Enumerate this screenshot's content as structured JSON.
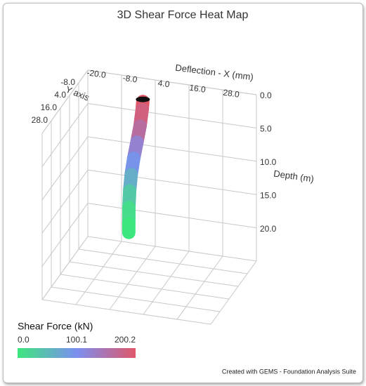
{
  "chart_data": {
    "type": "tube3d",
    "title": "3D Shear Force Heat Map",
    "xlabel": "Deflection - X (mm)",
    "ylabel": "Y axis",
    "zlabel": "Depth (m)",
    "xlim": [
      -20,
      40
    ],
    "ylim": [
      -20,
      40
    ],
    "zlim": [
      0,
      25
    ],
    "xticks": [
      {
        "value": -20,
        "label": "-20.0"
      },
      {
        "value": -8,
        "label": "-8.0"
      },
      {
        "value": 4,
        "label": "4.0"
      },
      {
        "value": 16,
        "label": "16.0"
      },
      {
        "value": 28,
        "label": "28.0"
      }
    ],
    "yticks": [
      {
        "value": -8,
        "label": "-8.0"
      },
      {
        "value": 4,
        "label": "4.0"
      },
      {
        "value": 16,
        "label": "16.0"
      },
      {
        "value": 28,
        "label": "28.0"
      }
    ],
    "zticks": [
      {
        "value": 0,
        "label": "0.0"
      },
      {
        "value": 5,
        "label": "5.0"
      },
      {
        "value": 10,
        "label": "10.0"
      },
      {
        "value": 15,
        "label": "15.0"
      },
      {
        "value": 20,
        "label": "20.0"
      }
    ],
    "grid": true,
    "series": [
      {
        "y": 0,
        "depth": [
          0,
          2.5,
          5,
          7.5,
          10,
          12.5,
          15,
          17.5,
          20
        ],
        "x": [
          5,
          4.5,
          3.5,
          2.3,
          1.2,
          0.5,
          0.1,
          0,
          0
        ],
        "shear": [
          200.2,
          185,
          160,
          125,
          95,
          65,
          35,
          12,
          0
        ]
      }
    ],
    "colorbar": {
      "title": "Shear Force (kN)",
      "clim": [
        0,
        200.2
      ],
      "ticks": [
        {
          "value": 0,
          "label": "0.0"
        },
        {
          "value": 100.1,
          "label": "100.1"
        },
        {
          "value": 200.2,
          "label": "200.2"
        }
      ],
      "colorscale": [
        "#3ee67e",
        "#7b8ff0",
        "#e0576a"
      ]
    },
    "footer": "Created with GEMS - Foundation Analysis Suite"
  }
}
